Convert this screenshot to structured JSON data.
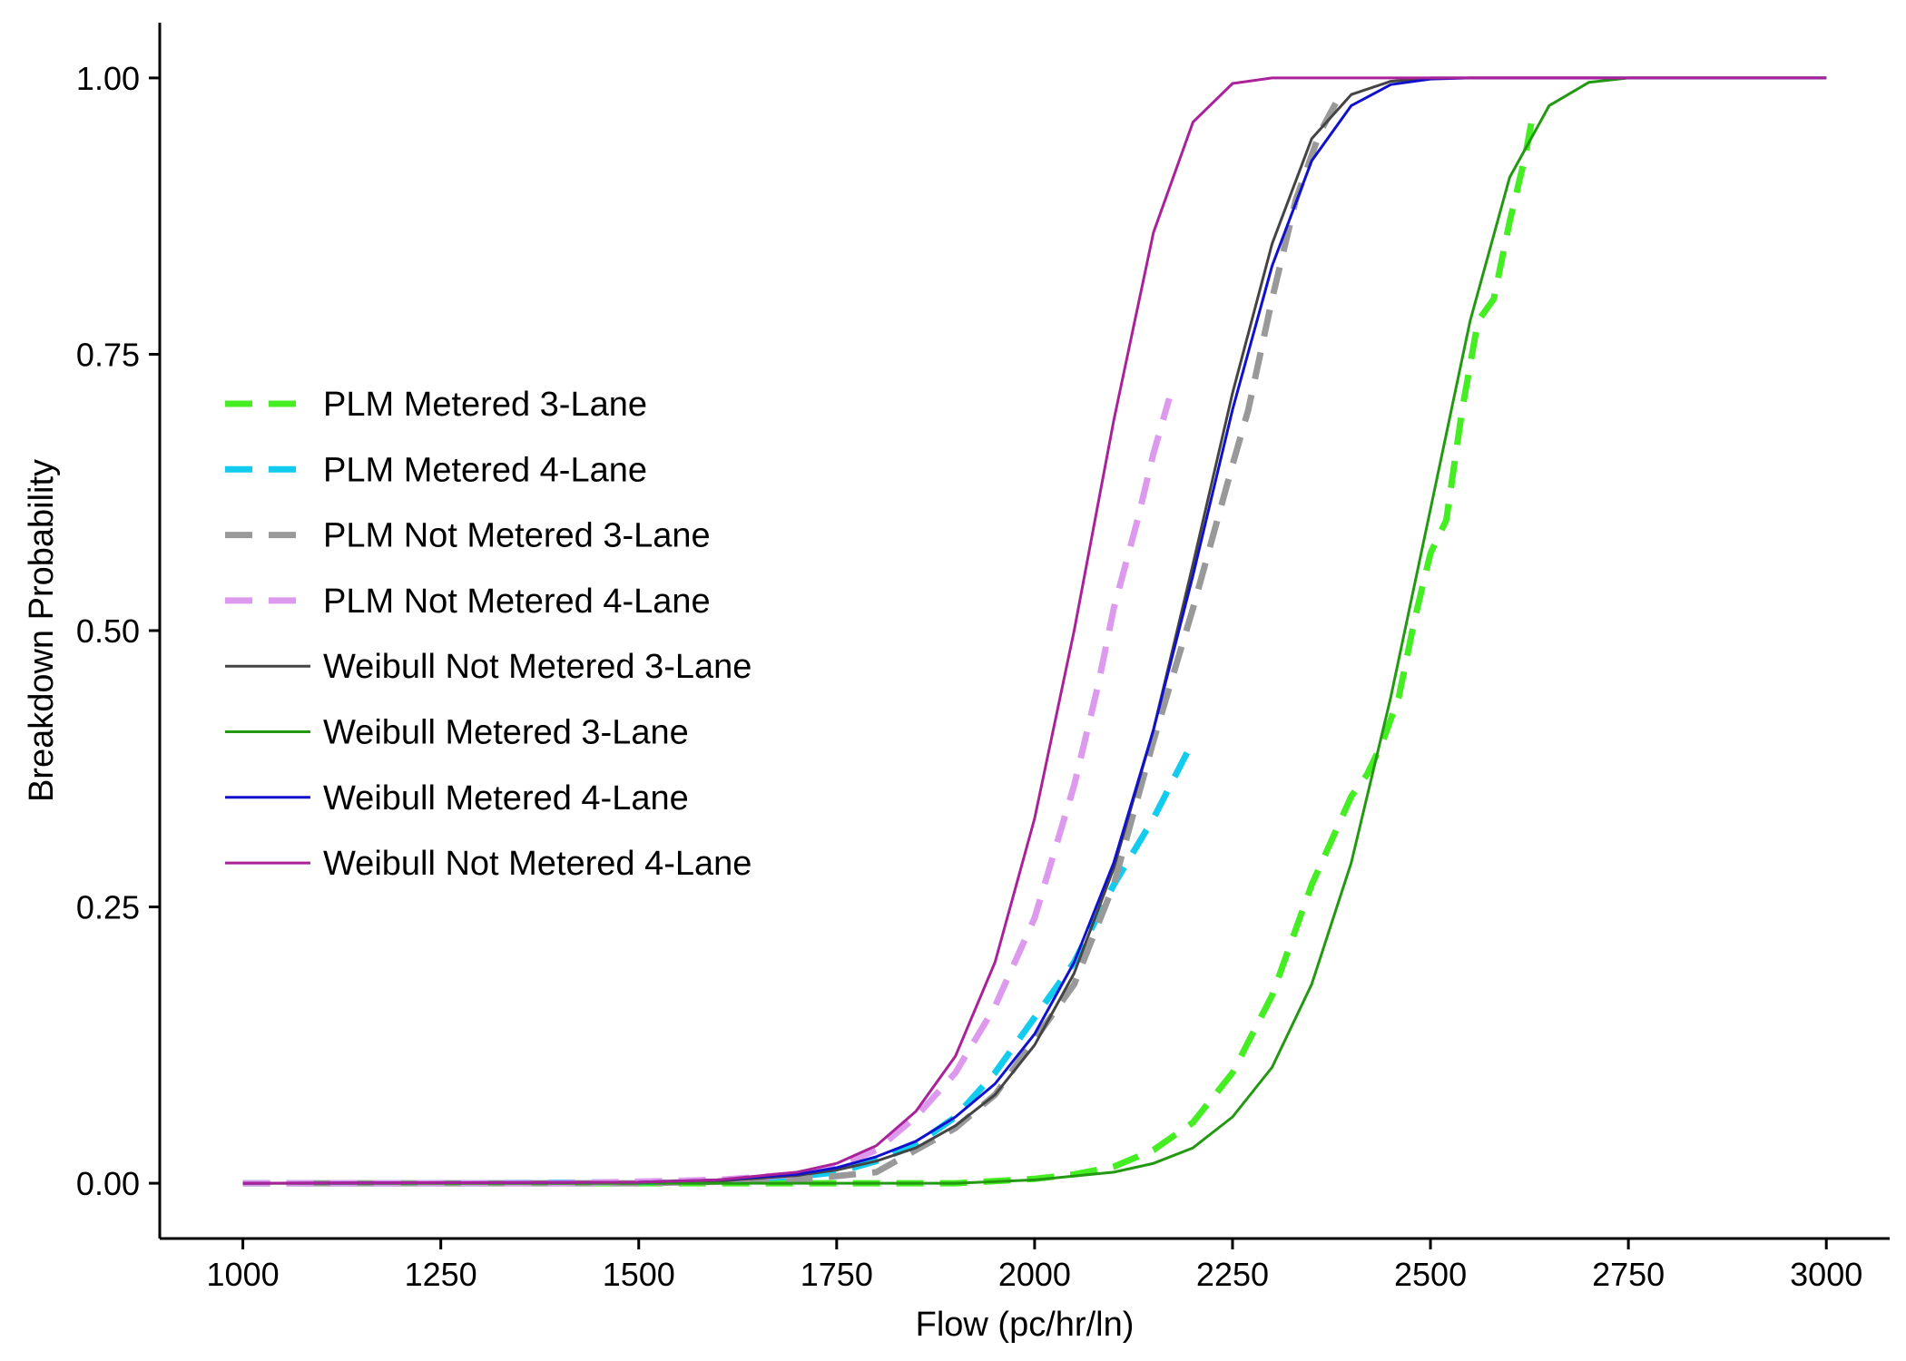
{
  "chart_data": {
    "type": "line",
    "title": "",
    "xlabel": "Flow (pc/hr/ln)",
    "ylabel": "Breakdown Probability",
    "xlim": [
      895,
      3080
    ],
    "ylim": [
      -0.05,
      1.05
    ],
    "x_ticks": [
      1000,
      1250,
      1500,
      1750,
      2000,
      2250,
      2500,
      2750,
      3000
    ],
    "x_tick_labels": [
      "1000",
      "1250",
      "1500",
      "1750",
      "2000",
      "2250",
      "2500",
      "2750",
      "3000"
    ],
    "y_ticks": [
      0,
      0.25,
      0.5,
      0.75,
      1.0
    ],
    "y_tick_labels": [
      "0.00",
      "0.25",
      "0.50",
      "0.75",
      "1.00"
    ],
    "grid": false,
    "legend_position": "center-left",
    "series": [
      {
        "name": "PLM Metered 3-Lane",
        "style": "dashed",
        "color": "#44ee22",
        "x": [
          1000,
          1500,
          1600,
          1700,
          1800,
          1900,
          1950,
          2000,
          2050,
          2100,
          2150,
          2200,
          2250,
          2300,
          2350,
          2400,
          2420,
          2440,
          2460,
          2480,
          2500,
          2520,
          2540,
          2560,
          2580,
          2600,
          2620,
          2630
        ],
        "y": [
          0.0,
          0.0,
          0.0,
          0.0,
          0.0,
          0.0,
          0.002,
          0.004,
          0.008,
          0.015,
          0.03,
          0.055,
          0.1,
          0.17,
          0.27,
          0.35,
          0.37,
          0.4,
          0.44,
          0.51,
          0.57,
          0.6,
          0.7,
          0.78,
          0.8,
          0.87,
          0.93,
          0.97
        ]
      },
      {
        "name": "PLM Metered 4-Lane",
        "style": "dashed",
        "color": "#11ccee",
        "x": [
          1000,
          1300,
          1500,
          1600,
          1700,
          1750,
          1800,
          1850,
          1900,
          1950,
          2000,
          2050,
          2100,
          2150,
          2200
        ],
        "y": [
          0.0,
          0.0,
          0.001,
          0.003,
          0.006,
          0.01,
          0.02,
          0.035,
          0.06,
          0.1,
          0.15,
          0.2,
          0.27,
          0.33,
          0.4
        ]
      },
      {
        "name": "PLM Not Metered 3-Lane",
        "style": "dashed",
        "color": "#999999",
        "x": [
          1080,
          1500,
          1700,
          1800,
          1850,
          1900,
          1950,
          2000,
          2050,
          2100,
          2150,
          2200,
          2250,
          2270,
          2300,
          2330,
          2360,
          2390
        ],
        "y": [
          0.0,
          0.0,
          0.003,
          0.01,
          0.03,
          0.05,
          0.08,
          0.13,
          0.18,
          0.27,
          0.4,
          0.52,
          0.65,
          0.7,
          0.8,
          0.89,
          0.95,
          0.99
        ]
      },
      {
        "name": "PLM Not Metered 4-Lane",
        "style": "dashed",
        "color": "#dd99ee",
        "x": [
          1000,
          1400,
          1600,
          1700,
          1750,
          1800,
          1850,
          1900,
          1950,
          2000,
          2050,
          2080,
          2100,
          2130,
          2150,
          2170
        ],
        "y": [
          0.0,
          0.0,
          0.003,
          0.008,
          0.015,
          0.03,
          0.06,
          0.1,
          0.16,
          0.24,
          0.36,
          0.45,
          0.52,
          0.6,
          0.66,
          0.71
        ]
      },
      {
        "name": "Weibull Not Metered 3-Lane",
        "style": "solid",
        "color": "#444444",
        "x": [
          1000,
          1500,
          1600,
          1700,
          1750,
          1800,
          1850,
          1900,
          1950,
          2000,
          2050,
          2100,
          2150,
          2200,
          2250,
          2300,
          2350,
          2400,
          2450,
          2500,
          2550,
          2600,
          3000
        ],
        "y": [
          0.0,
          0.0,
          0.002,
          0.007,
          0.012,
          0.02,
          0.032,
          0.052,
          0.08,
          0.125,
          0.19,
          0.285,
          0.41,
          0.56,
          0.715,
          0.85,
          0.945,
          0.985,
          0.997,
          1.0,
          1.0,
          1.0,
          1.0
        ]
      },
      {
        "name": "Weibull Metered 3-Lane",
        "style": "solid",
        "color": "#229911",
        "x": [
          1000,
          1900,
          2000,
          2100,
          2150,
          2200,
          2250,
          2300,
          2350,
          2400,
          2450,
          2500,
          2550,
          2600,
          2650,
          2700,
          2750,
          3000
        ],
        "y": [
          0.0,
          0.0,
          0.003,
          0.01,
          0.018,
          0.032,
          0.06,
          0.105,
          0.18,
          0.29,
          0.44,
          0.61,
          0.78,
          0.91,
          0.975,
          0.996,
          1.0,
          1.0
        ]
      },
      {
        "name": "Weibull Metered 4-Lane",
        "style": "solid",
        "color": "#1111cc",
        "x": [
          1000,
          1500,
          1600,
          1700,
          1750,
          1800,
          1850,
          1900,
          1950,
          2000,
          2050,
          2100,
          2150,
          2200,
          2250,
          2300,
          2350,
          2400,
          2450,
          2500,
          2550,
          3000
        ],
        "y": [
          0.0,
          0.001,
          0.003,
          0.008,
          0.014,
          0.024,
          0.038,
          0.06,
          0.09,
          0.135,
          0.2,
          0.29,
          0.41,
          0.55,
          0.7,
          0.83,
          0.925,
          0.975,
          0.994,
          0.999,
          1.0,
          1.0
        ]
      },
      {
        "name": "Weibull Not Metered 4-Lane",
        "style": "solid",
        "color": "#aa2299",
        "x": [
          1000,
          1500,
          1600,
          1700,
          1750,
          1800,
          1850,
          1900,
          1950,
          2000,
          2050,
          2100,
          2150,
          2200,
          2250,
          2300,
          2350,
          3000
        ],
        "y": [
          0.0,
          0.001,
          0.003,
          0.01,
          0.018,
          0.034,
          0.065,
          0.115,
          0.2,
          0.33,
          0.5,
          0.69,
          0.86,
          0.96,
          0.995,
          1.0,
          1.0,
          1.0
        ]
      }
    ]
  }
}
